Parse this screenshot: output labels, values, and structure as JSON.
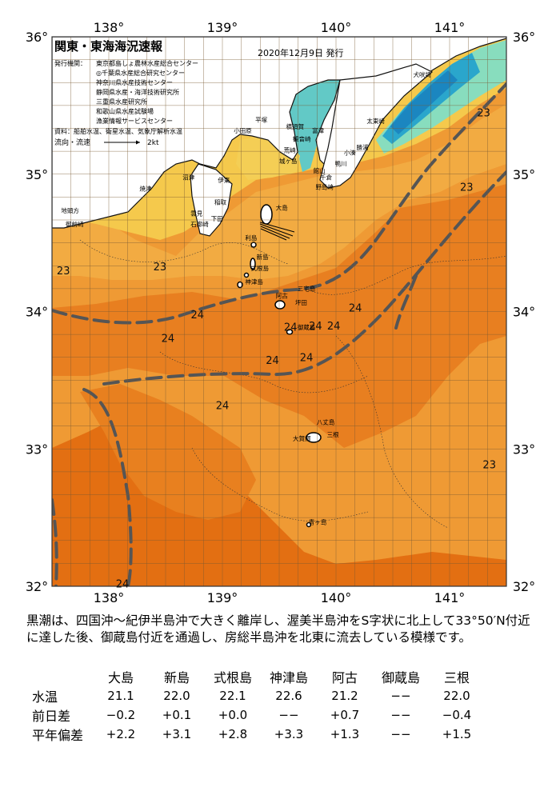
{
  "map": {
    "title": "関東・東海海況速報",
    "date": "2020年12月9日 発行",
    "issuer_label": "発行機関：",
    "issuers": [
      "東京都島しょ農林水産総合センター",
      "◎千葉県水産総合研究センター",
      "神奈川県水産技術センター",
      "静岡県水産・海洋技術研究所",
      "三重県水産研究所",
      "和歌山県水産試験場",
      "漁業情報サービスセンター"
    ],
    "source": "資料：船舶水温、衛星水温、気象庁解析水温",
    "flow_label": "流向・流速",
    "flow_scale": "2kt",
    "lon_labels": [
      "138°",
      "139°",
      "140°",
      "141°"
    ],
    "lat_labels": [
      "36°",
      "35°",
      "34°",
      "33°",
      "32°"
    ],
    "isotherm_labels": [
      {
        "text": "23",
        "lon": 141.3,
        "lat": 35.42
      },
      {
        "text": "23",
        "lon": 141.15,
        "lat": 34.88
      },
      {
        "text": "23",
        "lon": 137.6,
        "lat": 34.27
      },
      {
        "text": "23",
        "lon": 138.45,
        "lat": 34.3
      },
      {
        "text": "24",
        "lon": 140.17,
        "lat": 34.0
      },
      {
        "text": "24",
        "lon": 138.78,
        "lat": 33.95
      },
      {
        "text": "24",
        "lon": 138.52,
        "lat": 33.78
      },
      {
        "text": "24",
        "lon": 139.6,
        "lat": 33.86
      },
      {
        "text": "24",
        "lon": 139.82,
        "lat": 33.87
      },
      {
        "text": "24",
        "lon": 139.98,
        "lat": 33.87
      },
      {
        "text": "24",
        "lon": 139.74,
        "lat": 33.64
      },
      {
        "text": "24",
        "lon": 139.44,
        "lat": 33.62
      },
      {
        "text": "24",
        "lon": 139.0,
        "lat": 33.29
      },
      {
        "text": "23",
        "lon": 141.35,
        "lat": 32.86
      },
      {
        "text": "24",
        "lon": 138.12,
        "lat": 31.99
      }
    ],
    "places": [
      {
        "text": "犬吠埼",
        "lon": 140.68,
        "lat": 35.71
      },
      {
        "text": "太東崎",
        "lon": 140.27,
        "lat": 35.37
      },
      {
        "text": "勝浦",
        "lon": 140.18,
        "lat": 35.18
      },
      {
        "text": "小湊",
        "lon": 140.07,
        "lat": 35.14
      },
      {
        "text": "鴨川",
        "lon": 139.99,
        "lat": 35.06
      },
      {
        "text": "野島崎",
        "lon": 139.82,
        "lat": 34.89
      },
      {
        "text": "千倉",
        "lon": 139.86,
        "lat": 34.96
      },
      {
        "text": "館山",
        "lon": 139.8,
        "lat": 35.01
      },
      {
        "text": "富津",
        "lon": 139.79,
        "lat": 35.3
      },
      {
        "text": "横須賀",
        "lon": 139.56,
        "lat": 35.33
      },
      {
        "text": "観音崎",
        "lon": 139.62,
        "lat": 35.24
      },
      {
        "text": "平塚",
        "lon": 139.29,
        "lat": 35.38
      },
      {
        "text": "荒崎",
        "lon": 139.54,
        "lat": 35.16
      },
      {
        "text": "城ヶ島",
        "lon": 139.5,
        "lat": 35.08
      },
      {
        "text": "小田原",
        "lon": 139.1,
        "lat": 35.3
      },
      {
        "text": "沼津",
        "lon": 138.65,
        "lat": 34.96
      },
      {
        "text": "伊東",
        "lon": 138.96,
        "lat": 34.94
      },
      {
        "text": "稲取",
        "lon": 138.93,
        "lat": 34.78
      },
      {
        "text": "雲見",
        "lon": 138.72,
        "lat": 34.7
      },
      {
        "text": "下田",
        "lon": 138.9,
        "lat": 34.66
      },
      {
        "text": "石廊崎",
        "lon": 138.72,
        "lat": 34.62
      },
      {
        "text": "焼津",
        "lon": 138.27,
        "lat": 34.88
      },
      {
        "text": "地頭方",
        "lon": 137.58,
        "lat": 34.72
      },
      {
        "text": "御前崎",
        "lon": 137.62,
        "lat": 34.62
      },
      {
        "text": "大島",
        "lon": 139.47,
        "lat": 34.74
      },
      {
        "text": "利島",
        "lon": 139.2,
        "lat": 34.52
      },
      {
        "text": "新島",
        "lon": 139.3,
        "lat": 34.38
      },
      {
        "text": "式根島",
        "lon": 139.25,
        "lat": 34.3
      },
      {
        "text": "神津島",
        "lon": 139.2,
        "lat": 34.2
      },
      {
        "text": "三宅島",
        "lon": 139.66,
        "lat": 34.15
      },
      {
        "text": "阿古",
        "lon": 139.47,
        "lat": 34.1
      },
      {
        "text": "坪田",
        "lon": 139.64,
        "lat": 34.05
      },
      {
        "text": "御蔵島",
        "lon": 139.66,
        "lat": 33.87
      },
      {
        "text": "八丈島",
        "lon": 139.83,
        "lat": 33.18
      },
      {
        "text": "三根",
        "lon": 139.92,
        "lat": 33.09
      },
      {
        "text": "大賀郷",
        "lon": 139.62,
        "lat": 33.06
      },
      {
        "text": "青ヶ島",
        "lon": 139.76,
        "lat": 32.45
      }
    ]
  },
  "description": "黒潮は、四国沖～紀伊半島沖で大きく離岸し、渥美半島沖をS字状に北上して33°50′N付近に達した後、御蔵島付近を通過し、房総半島沖を北東に流去している模様です。",
  "table": {
    "columns": [
      "大島",
      "新島",
      "式根島",
      "神津島",
      "阿古",
      "御蔵島",
      "三根"
    ],
    "rows": [
      {
        "label": "水温",
        "values": [
          "21.1",
          "22.0",
          "22.1",
          "22.6",
          "21.2",
          "−−",
          "22.0"
        ]
      },
      {
        "label": "前日差",
        "values": [
          "−0.2",
          "+0.1",
          "+0.0",
          "−−",
          "+0.7",
          "−−",
          "−0.4"
        ]
      },
      {
        "label": "平年偏差",
        "values": [
          "+2.2",
          "+3.1",
          "+2.8",
          "+3.3",
          "+1.3",
          "−−",
          "+1.5"
        ]
      }
    ]
  },
  "colors": {
    "land": "#ffffff",
    "cold_water": "#1e9ec8",
    "cool_water": "#7fdcc0",
    "warm_yellow": "#f3cd4e",
    "orange_23": "#ee9830",
    "orange_24": "#e77d1d",
    "orange_25": "#e06e10",
    "kuroshio_axis": "#555555"
  }
}
